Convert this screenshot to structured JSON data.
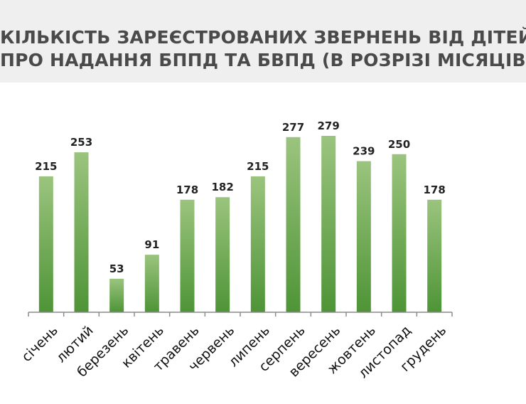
{
  "title": {
    "line1": "КІЛЬКІСТЬ ЗАРЕЄСТРОВАНИХ ЗВЕРНЕНЬ ВІД ДІТЕЙ",
    "line2": "ПРО НАДАННЯ БППД ТА БВПД (В РОЗРІЗІ МІСЯЦІВ)"
  },
  "colors": {
    "bar_top": "#9bc47e",
    "bar_bottom": "#4e9436",
    "axis": "#8c8c8c",
    "title_band": "#efefef"
  },
  "chart_data": {
    "type": "bar",
    "title": "КІЛЬКІСТЬ ЗАРЕЄСТРОВАНИХ ЗВЕРНЕНЬ ВІД ДІТЕЙ ПРО НАДАННЯ БППД ТА БВПД (В РОЗРІЗІ МІСЯЦІВ)",
    "categories": [
      "січень",
      "лютий",
      "березень",
      "квітень",
      "травень",
      "червень",
      "липень",
      "серпень",
      "вересень",
      "жовтень",
      "листопад",
      "грудень"
    ],
    "values": [
      215,
      253,
      53,
      91,
      178,
      182,
      215,
      277,
      279,
      239,
      250,
      178
    ],
    "xlabel": "",
    "ylabel": "",
    "ylim": [
      0,
      279
    ],
    "grid": false,
    "legend": "none",
    "data_labels": true
  }
}
